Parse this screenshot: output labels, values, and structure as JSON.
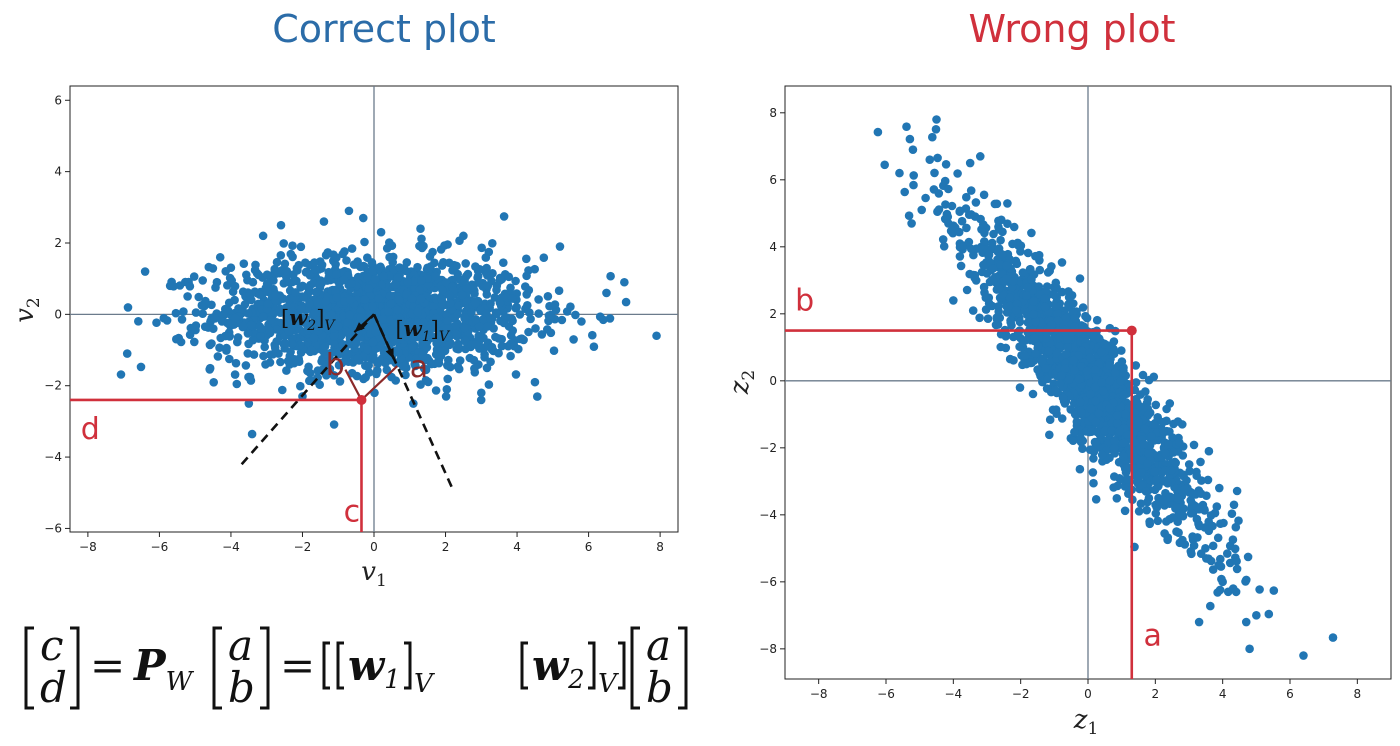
{
  "colors": {
    "blue": "#2b6ca8",
    "red": "#d0303c",
    "points": "#2176b4",
    "black": "#111111",
    "axis_line": "#6b7b8c"
  },
  "chart_data": [
    {
      "type": "scatter",
      "title": "Correct plot",
      "xlabel": "v",
      "xlabel_sub": "1",
      "ylabel": "v",
      "ylabel_sub": "2",
      "xlim": [
        -8.5,
        8.5
      ],
      "ylim": [
        -6.1,
        6.4
      ],
      "xticks": [
        -8,
        -6,
        -4,
        -2,
        0,
        2,
        4,
        6,
        8
      ],
      "yticks": [
        -6,
        -4,
        -2,
        0,
        2,
        4,
        6
      ],
      "tick_labels_x": [
        "−8",
        "−6",
        "−4",
        "−2",
        "0",
        "2",
        "4",
        "6",
        "8"
      ],
      "tick_labels_y": [
        "−6",
        "−4",
        "−2",
        "0",
        "2",
        "4",
        "6"
      ],
      "cloud": {
        "shape": "ellipse",
        "center": [
          0,
          0
        ],
        "sx": 2.2,
        "sy": 0.8,
        "n": 1800
      },
      "outliers": [
        [
          -6.9,
          -1.1
        ],
        [
          -6.4,
          1.2
        ],
        [
          -5.7,
          0.8
        ],
        [
          -4.3,
          1.6
        ],
        [
          -3.1,
          2.2
        ],
        [
          -2.6,
          2.5
        ],
        [
          -1.4,
          2.6
        ],
        [
          -0.7,
          2.9
        ],
        [
          -0.3,
          2.7
        ],
        [
          1.3,
          2.4
        ],
        [
          2.5,
          2.2
        ],
        [
          5.2,
          1.9
        ],
        [
          5.8,
          -0.2
        ],
        [
          6.5,
          0.6
        ],
        [
          7.0,
          0.9
        ],
        [
          7.9,
          -0.6
        ],
        [
          -3.5,
          -2.5
        ],
        [
          -2.0,
          -2.3
        ],
        [
          1.1,
          -2.5
        ],
        [
          3.0,
          -2.2
        ],
        [
          4.5,
          -1.9
        ]
      ],
      "dashed_lines": [
        [
          [
            -3.7,
            -4.2
          ],
          [
            0,
            0
          ]
        ],
        [
          [
            0,
            0
          ],
          [
            2.2,
            -4.9
          ]
        ]
      ],
      "arrows": [
        [
          [
            0,
            0
          ],
          [
            0.55,
            -1.25
          ]
        ],
        [
          [
            0,
            0
          ],
          [
            -0.55,
            -0.5
          ]
        ]
      ],
      "vector_labels": [
        {
          "name": "w",
          "sub": "2",
          "outer_sub": "V",
          "at": [
            -2.6,
            -0.3
          ]
        },
        {
          "name": "w",
          "sub": "1",
          "outer_sub": "V",
          "at": [
            0.6,
            -0.6
          ]
        }
      ],
      "point": [
        -0.35,
        -2.4
      ],
      "annotations": [
        {
          "text": "a",
          "at": [
            1.0,
            -1.75
          ]
        },
        {
          "text": "b",
          "at": [
            -1.35,
            -1.7
          ]
        },
        {
          "text": "c",
          "at": [
            -0.85,
            -5.8
          ]
        },
        {
          "text": "d",
          "at": [
            -8.2,
            -3.5
          ]
        }
      ]
    },
    {
      "type": "scatter",
      "title": "Wrong plot",
      "xlabel": "z",
      "xlabel_sub": "1",
      "ylabel": "z",
      "ylabel_sub": "2",
      "xlim": [
        -9,
        9
      ],
      "ylim": [
        -8.9,
        8.8
      ],
      "xticks": [
        -8,
        -6,
        -4,
        -2,
        0,
        2,
        4,
        6,
        8
      ],
      "yticks": [
        -8,
        -6,
        -4,
        -2,
        0,
        2,
        4,
        6,
        8
      ],
      "tick_labels_x": [
        "−8",
        "−6",
        "−4",
        "−2",
        "0",
        "2",
        "4",
        "6",
        "8"
      ],
      "tick_labels_y": [
        "−8",
        "−6",
        "−4",
        "−2",
        "0",
        "2",
        "4",
        "6",
        "8"
      ],
      "cloud": {
        "shape": "rotated-ellipse",
        "center": [
          0,
          0
        ],
        "major": 2.9,
        "minor": 0.55,
        "angle_deg": -53,
        "n": 1800
      },
      "outliers": [
        [
          -4.5,
          7.8
        ],
        [
          -5.6,
          6.2
        ],
        [
          -5.2,
          6.9
        ],
        [
          -4.7,
          6.6
        ],
        [
          -3.5,
          6.5
        ],
        [
          -3.2,
          6.7
        ],
        [
          -4.0,
          2.4
        ],
        [
          -2.3,
          1.8
        ],
        [
          2.8,
          -1.3
        ],
        [
          3.9,
          -3.2
        ],
        [
          4.0,
          -6.0
        ],
        [
          4.4,
          -6.3
        ],
        [
          4.7,
          -7.2
        ],
        [
          4.8,
          -8.0
        ],
        [
          5.0,
          -7.0
        ],
        [
          6.4,
          -8.2
        ],
        [
          3.3,
          -7.2
        ]
      ],
      "point": [
        1.3,
        1.5
      ],
      "annotations": [
        {
          "text": "a",
          "at": [
            1.65,
            -7.9
          ]
        },
        {
          "text": "b",
          "at": [
            -8.7,
            2.1
          ]
        }
      ]
    }
  ],
  "formula": {
    "lhs_top": "c",
    "lhs_bottom": "d",
    "equals": "=",
    "P": "P",
    "P_sub": "W",
    "rhs_top": "a",
    "rhs_bottom": "b",
    "equals_2": "=",
    "w1": "w",
    "w1_sub": "1",
    "w1_outer_sub": "V",
    "w2": "w",
    "w2_sub": "2",
    "w2_outer_sub": "V",
    "final_top": "a",
    "final_bottom": "b"
  }
}
